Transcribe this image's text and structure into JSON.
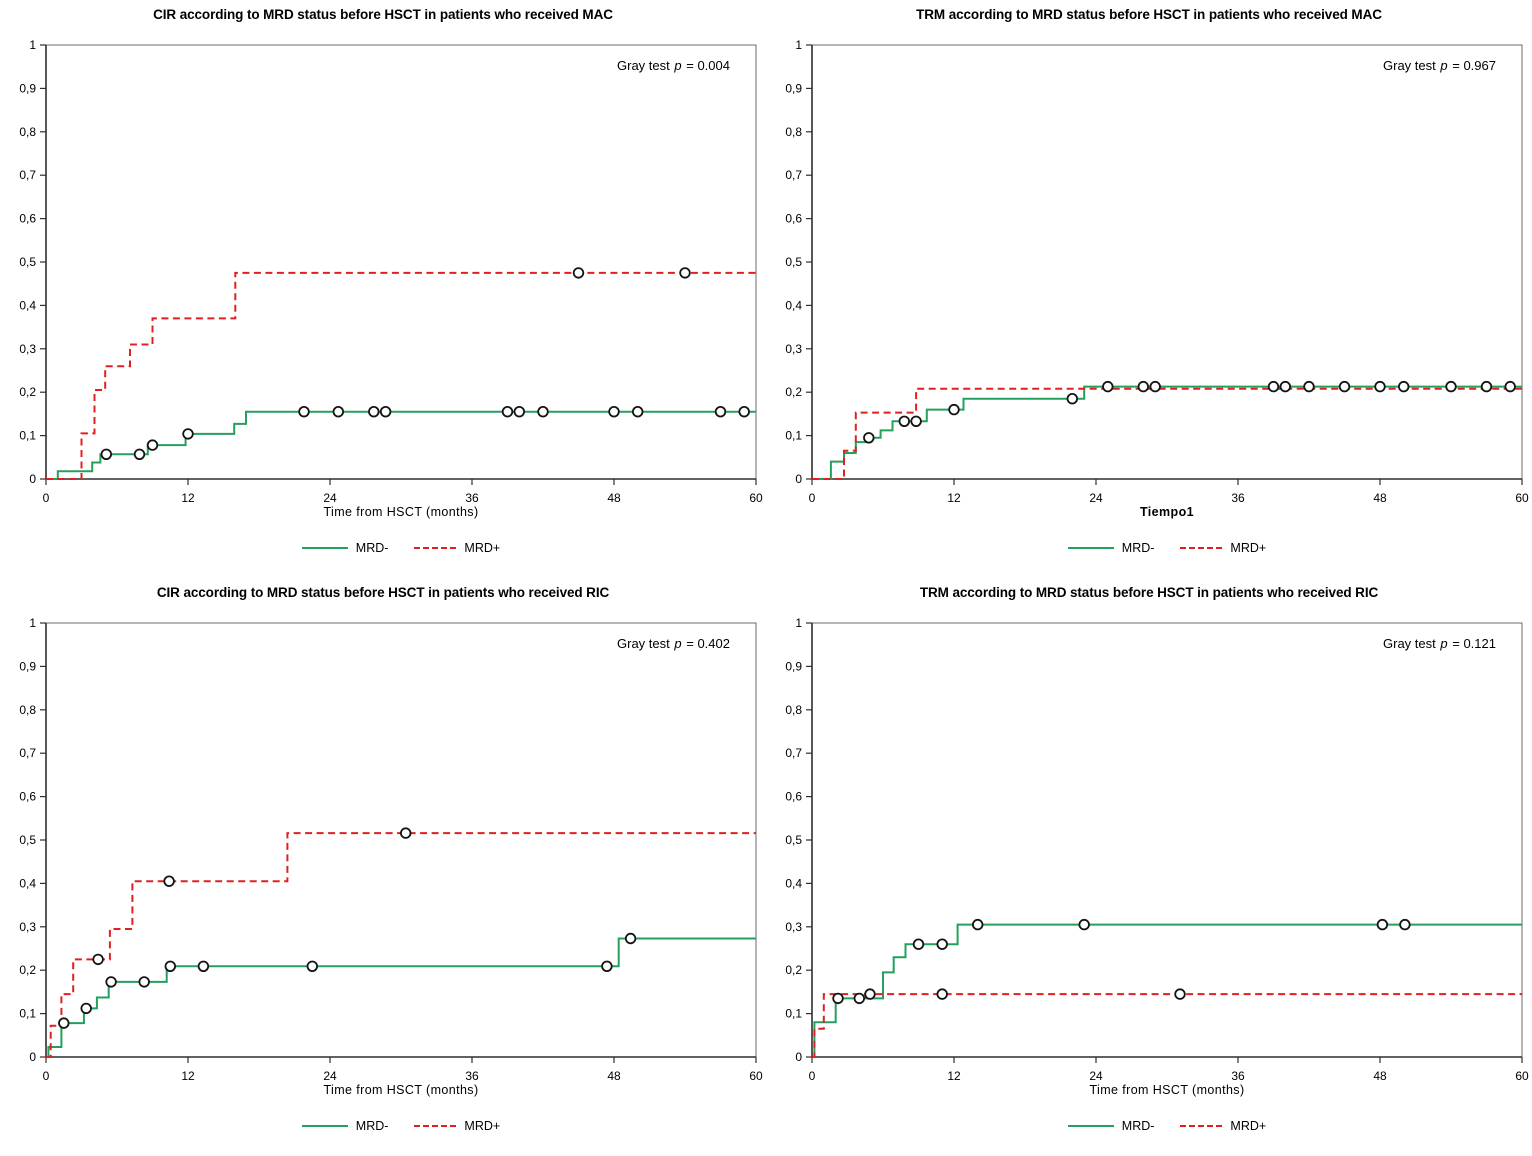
{
  "colors": {
    "mrd_neg": "#23a05c",
    "mrd_pos": "#e02020",
    "axis_strong": "#2f2f2f",
    "axis_light": "#6b6b6b",
    "censor_stroke": "#141414",
    "censor_fill": "#ffffff"
  },
  "chart_data": [
    {
      "id": "cir_mac",
      "type": "line",
      "subtype": "cumulative-incidence-step",
      "title": "CIR according to MRD status before HSCT in patients who received MAC",
      "annotation": {
        "prefix": "Gray test",
        "symbol": "p",
        "rest": "= 0.004"
      },
      "xlabel": "Time from HSCT (months)",
      "xlabel_bold": false,
      "xlim": [
        0,
        60
      ],
      "xticks": [
        0,
        12,
        24,
        36,
        48,
        60
      ],
      "ylim": [
        0,
        1
      ],
      "yticks": [
        [
          0,
          "0"
        ],
        [
          0.1,
          "0,1"
        ],
        [
          0.2,
          "0,2"
        ],
        [
          0.3,
          "0,3"
        ],
        [
          0.4,
          "0,4"
        ],
        [
          0.5,
          "0,5"
        ],
        [
          0.6,
          "0,6"
        ],
        [
          0.7,
          "0,7"
        ],
        [
          0.8,
          "0,8"
        ],
        [
          0.9,
          "0,9"
        ],
        [
          1,
          "1"
        ]
      ],
      "grid": false,
      "legend_position": "bottom-center",
      "series": [
        {
          "name": "MRD-",
          "color": "#23a05c",
          "dash": false,
          "steps": [
            [
              0,
              0
            ],
            [
              1,
              0.018
            ],
            [
              3.9,
              0.038
            ],
            [
              4.6,
              0.057
            ],
            [
              8.6,
              0.078
            ],
            [
              11.8,
              0.104
            ],
            [
              15.9,
              0.127
            ],
            [
              16.9,
              0.155
            ]
          ],
          "censors": [
            [
              5.1,
              0.057
            ],
            [
              7.9,
              0.057
            ],
            [
              9,
              0.078
            ],
            [
              12,
              0.104
            ],
            [
              21.8,
              0.155
            ],
            [
              24.7,
              0.155
            ],
            [
              27.7,
              0.155
            ],
            [
              28.7,
              0.155
            ],
            [
              39,
              0.155
            ],
            [
              40,
              0.155
            ],
            [
              42,
              0.155
            ],
            [
              48,
              0.155
            ],
            [
              50,
              0.155
            ],
            [
              57,
              0.155
            ],
            [
              59,
              0.155
            ]
          ]
        },
        {
          "name": "MRD+",
          "color": "#e02020",
          "dash": true,
          "steps": [
            [
              0,
              0
            ],
            [
              3,
              0.105
            ],
            [
              4.1,
              0.205
            ],
            [
              5,
              0.26
            ],
            [
              7.1,
              0.31
            ],
            [
              9,
              0.37
            ],
            [
              16,
              0.475
            ]
          ],
          "censors": [
            [
              45,
              0.475
            ],
            [
              54,
              0.475
            ]
          ]
        }
      ]
    },
    {
      "id": "trm_mac",
      "type": "line",
      "subtype": "cumulative-incidence-step",
      "title": "TRM according to MRD status before HSCT in patients who received MAC",
      "annotation": {
        "prefix": "Gray test",
        "symbol": "p",
        "rest": "= 0.967"
      },
      "xlabel": "Tiempo1",
      "xlabel_bold": true,
      "xlim": [
        0,
        60
      ],
      "xticks": [
        0,
        12,
        24,
        36,
        48,
        60
      ],
      "ylim": [
        0,
        1
      ],
      "yticks": [
        [
          0,
          "0"
        ],
        [
          0.1,
          "0,1"
        ],
        [
          0.2,
          "0,2"
        ],
        [
          0.3,
          "0,3"
        ],
        [
          0.4,
          "0,4"
        ],
        [
          0.5,
          "0,5"
        ],
        [
          0.6,
          "0,6"
        ],
        [
          0.7,
          "0,7"
        ],
        [
          0.8,
          "0,8"
        ],
        [
          0.9,
          "0,9"
        ],
        [
          1,
          "1"
        ]
      ],
      "grid": false,
      "legend_position": "bottom-center",
      "series": [
        {
          "name": "MRD-",
          "color": "#23a05c",
          "dash": false,
          "steps": [
            [
              0,
              0
            ],
            [
              1.6,
              0.04
            ],
            [
              2.7,
              0.06
            ],
            [
              3.7,
              0.085
            ],
            [
              4.5,
              0.095
            ],
            [
              5.8,
              0.112
            ],
            [
              6.8,
              0.133
            ],
            [
              9.7,
              0.16
            ],
            [
              12.8,
              0.185
            ],
            [
              23,
              0.213
            ]
          ],
          "censors": [
            [
              4.8,
              0.095
            ],
            [
              7.8,
              0.133
            ],
            [
              8.8,
              0.133
            ],
            [
              12,
              0.16
            ],
            [
              22,
              0.185
            ],
            [
              25,
              0.213
            ],
            [
              28,
              0.213
            ],
            [
              29,
              0.213
            ],
            [
              39,
              0.213
            ],
            [
              40,
              0.213
            ],
            [
              42,
              0.213
            ],
            [
              45,
              0.213
            ],
            [
              48,
              0.213
            ],
            [
              50,
              0.213
            ],
            [
              54,
              0.213
            ],
            [
              57,
              0.213
            ],
            [
              59,
              0.213
            ]
          ]
        },
        {
          "name": "MRD+",
          "color": "#e02020",
          "dash": true,
          "steps": [
            [
              0,
              0
            ],
            [
              2.7,
              0.065
            ],
            [
              3.7,
              0.153
            ],
            [
              8.8,
              0.208
            ]
          ],
          "censors": []
        }
      ]
    },
    {
      "id": "cir_ric",
      "type": "line",
      "subtype": "cumulative-incidence-step",
      "title": "CIR according to MRD status before HSCT in patients who received RIC",
      "annotation": {
        "prefix": "Gray test",
        "symbol": "p",
        "rest": "= 0.402"
      },
      "xlabel": "Time from HSCT (months)",
      "xlabel_bold": false,
      "xlim": [
        0,
        60
      ],
      "xticks": [
        0,
        12,
        24,
        36,
        48,
        60
      ],
      "ylim": [
        0,
        1
      ],
      "yticks": [
        [
          0,
          "0"
        ],
        [
          0.1,
          "0,1"
        ],
        [
          0.2,
          "0,2"
        ],
        [
          0.3,
          "0,3"
        ],
        [
          0.4,
          "0,4"
        ],
        [
          0.5,
          "0,5"
        ],
        [
          0.6,
          "0,6"
        ],
        [
          0.7,
          "0,7"
        ],
        [
          0.8,
          "0,8"
        ],
        [
          0.9,
          "0,9"
        ],
        [
          1,
          "1"
        ]
      ],
      "grid": false,
      "legend_position": "bottom-center",
      "series": [
        {
          "name": "MRD-",
          "color": "#23a05c",
          "dash": false,
          "steps": [
            [
              0,
              0
            ],
            [
              0.2,
              0.023
            ],
            [
              1.3,
              0.078
            ],
            [
              3.2,
              0.112
            ],
            [
              4.3,
              0.137
            ],
            [
              5.3,
              0.173
            ],
            [
              10.2,
              0.209
            ],
            [
              48.4,
              0.273
            ]
          ],
          "censors": [
            [
              1.5,
              0.078
            ],
            [
              3.4,
              0.112
            ],
            [
              5.5,
              0.173
            ],
            [
              8.3,
              0.173
            ],
            [
              10.5,
              0.209
            ],
            [
              13.3,
              0.209
            ],
            [
              22.5,
              0.209
            ],
            [
              47.4,
              0.209
            ],
            [
              49.4,
              0.273
            ]
          ]
        },
        {
          "name": "MRD+",
          "color": "#e02020",
          "dash": true,
          "steps": [
            [
              0,
              0
            ],
            [
              0.4,
              0.072
            ],
            [
              1.3,
              0.145
            ],
            [
              2.3,
              0.225
            ],
            [
              5.4,
              0.295
            ],
            [
              7.3,
              0.405
            ],
            [
              20.4,
              0.516
            ]
          ],
          "censors": [
            [
              4.4,
              0.225
            ],
            [
              10.4,
              0.405
            ],
            [
              30.4,
              0.516
            ]
          ]
        }
      ]
    },
    {
      "id": "trm_ric",
      "type": "line",
      "subtype": "cumulative-incidence-step",
      "title": "TRM according to MRD status before HSCT in patients who received RIC",
      "annotation": {
        "prefix": "Gray test",
        "symbol": "p",
        "rest": "= 0.121"
      },
      "xlabel": "Time from HSCT (months)",
      "xlabel_bold": false,
      "xlim": [
        0,
        60
      ],
      "xticks": [
        0,
        12,
        24,
        36,
        48,
        60
      ],
      "ylim": [
        0,
        1
      ],
      "yticks": [
        [
          0,
          "0"
        ],
        [
          0.1,
          "0,1"
        ],
        [
          0.2,
          "0,2"
        ],
        [
          0.3,
          "0,3"
        ],
        [
          0.4,
          "0,4"
        ],
        [
          0.5,
          "0,5"
        ],
        [
          0.6,
          "0,6"
        ],
        [
          0.7,
          "0,7"
        ],
        [
          0.8,
          "0,8"
        ],
        [
          0.9,
          "0,9"
        ],
        [
          1,
          "1"
        ]
      ],
      "grid": false,
      "legend_position": "bottom-center",
      "series": [
        {
          "name": "MRD-",
          "color": "#23a05c",
          "dash": false,
          "steps": [
            [
              0,
              0
            ],
            [
              0.2,
              0.08
            ],
            [
              2,
              0.135
            ],
            [
              6,
              0.195
            ],
            [
              6.9,
              0.23
            ],
            [
              7.9,
              0.26
            ],
            [
              12.3,
              0.305
            ]
          ],
          "censors": [
            [
              2.2,
              0.135
            ],
            [
              4,
              0.135
            ],
            [
              9,
              0.26
            ],
            [
              11,
              0.26
            ],
            [
              14,
              0.305
            ],
            [
              23,
              0.305
            ],
            [
              48.2,
              0.305
            ],
            [
              50.1,
              0.305
            ]
          ]
        },
        {
          "name": "MRD+",
          "color": "#e02020",
          "dash": true,
          "steps": [
            [
              0,
              0
            ],
            [
              0.2,
              0.065
            ],
            [
              1,
              0.145
            ]
          ],
          "censors": [
            [
              4.9,
              0.145
            ],
            [
              11,
              0.145
            ],
            [
              31.1,
              0.145
            ]
          ]
        }
      ]
    }
  ]
}
